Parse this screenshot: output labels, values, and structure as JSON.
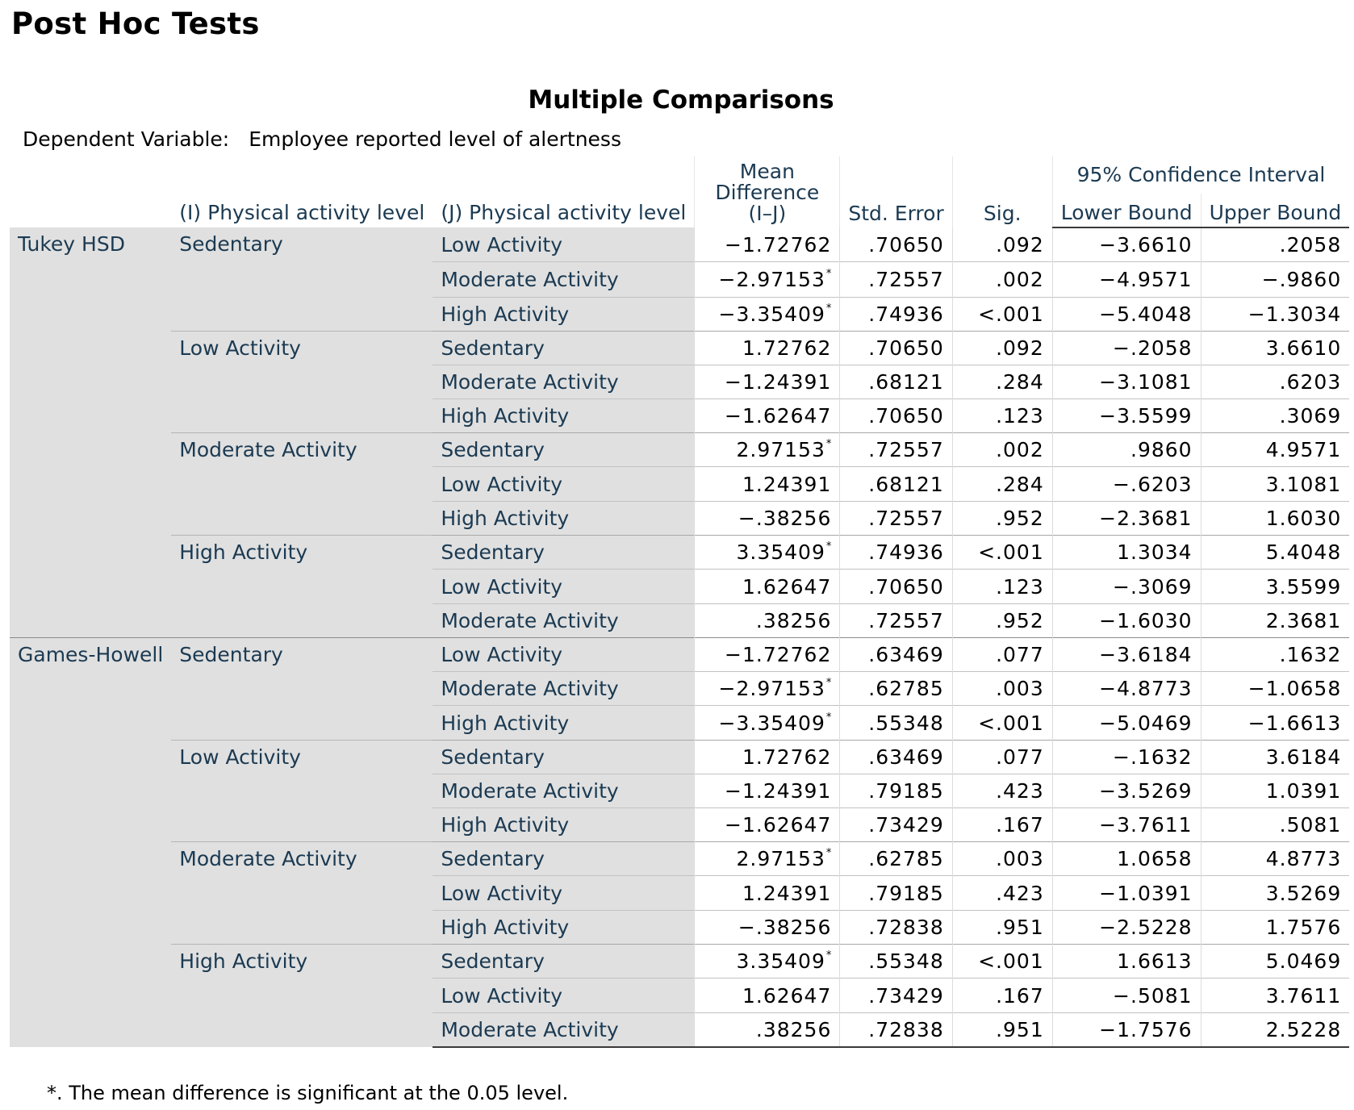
{
  "page": {
    "heading": "Post Hoc Tests",
    "table_title": "Multiple Comparisons",
    "dependent_variable_label": "Dependent Variable:",
    "dependent_variable_value": "Employee reported level of alertness"
  },
  "columns": {
    "i_level": "(I) Physical activity level",
    "j_level": "(J) Physical activity level",
    "mean_diff": "Mean Difference (I–J)",
    "std_error": "Std. Error",
    "sig": "Sig.",
    "ci_group": "95% Confidence Interval",
    "lower": "Lower Bound",
    "upper": "Upper Bound"
  },
  "rows": [
    {
      "method": "Tukey HSD",
      "i": "Sedentary",
      "j": "Low Activity",
      "md": "-1.72762",
      "star": false,
      "se": ".70650",
      "sig": ".092",
      "lb": "-3.6610",
      "ub": ".2058"
    },
    {
      "method": "",
      "i": "",
      "j": "Moderate Activity",
      "md": "-2.97153",
      "star": true,
      "se": ".72557",
      "sig": ".002",
      "lb": "-4.9571",
      "ub": "-.9860"
    },
    {
      "method": "",
      "i": "",
      "j": "High Activity",
      "md": "-3.35409",
      "star": true,
      "se": ".74936",
      "sig": "<.001",
      "lb": "-5.4048",
      "ub": "-1.3034"
    },
    {
      "method": "",
      "i": "Low Activity",
      "j": "Sedentary",
      "md": "1.72762",
      "star": false,
      "se": ".70650",
      "sig": ".092",
      "lb": "-.2058",
      "ub": "3.6610"
    },
    {
      "method": "",
      "i": "",
      "j": "Moderate Activity",
      "md": "-1.24391",
      "star": false,
      "se": ".68121",
      "sig": ".284",
      "lb": "-3.1081",
      "ub": ".6203"
    },
    {
      "method": "",
      "i": "",
      "j": "High Activity",
      "md": "-1.62647",
      "star": false,
      "se": ".70650",
      "sig": ".123",
      "lb": "-3.5599",
      "ub": ".3069"
    },
    {
      "method": "",
      "i": "Moderate Activity",
      "j": "Sedentary",
      "md": "2.97153",
      "star": true,
      "se": ".72557",
      "sig": ".002",
      "lb": ".9860",
      "ub": "4.9571"
    },
    {
      "method": "",
      "i": "",
      "j": "Low Activity",
      "md": "1.24391",
      "star": false,
      "se": ".68121",
      "sig": ".284",
      "lb": "-.6203",
      "ub": "3.1081"
    },
    {
      "method": "",
      "i": "",
      "j": "High Activity",
      "md": "-.38256",
      "star": false,
      "se": ".72557",
      "sig": ".952",
      "lb": "-2.3681",
      "ub": "1.6030"
    },
    {
      "method": "",
      "i": "High Activity",
      "j": "Sedentary",
      "md": "3.35409",
      "star": true,
      "se": ".74936",
      "sig": "<.001",
      "lb": "1.3034",
      "ub": "5.4048"
    },
    {
      "method": "",
      "i": "",
      "j": "Low Activity",
      "md": "1.62647",
      "star": false,
      "se": ".70650",
      "sig": ".123",
      "lb": "-.3069",
      "ub": "3.5599"
    },
    {
      "method": "",
      "i": "",
      "j": "Moderate Activity",
      "md": ".38256",
      "star": false,
      "se": ".72557",
      "sig": ".952",
      "lb": "-1.6030",
      "ub": "2.3681"
    },
    {
      "method": "Games-Howell",
      "i": "Sedentary",
      "j": "Low Activity",
      "md": "-1.72762",
      "star": false,
      "se": ".63469",
      "sig": ".077",
      "lb": "-3.6184",
      "ub": ".1632"
    },
    {
      "method": "",
      "i": "",
      "j": "Moderate Activity",
      "md": "-2.97153",
      "star": true,
      "se": ".62785",
      "sig": ".003",
      "lb": "-4.8773",
      "ub": "-1.0658"
    },
    {
      "method": "",
      "i": "",
      "j": "High Activity",
      "md": "-3.35409",
      "star": true,
      "se": ".55348",
      "sig": "<.001",
      "lb": "-5.0469",
      "ub": "-1.6613"
    },
    {
      "method": "",
      "i": "Low Activity",
      "j": "Sedentary",
      "md": "1.72762",
      "star": false,
      "se": ".63469",
      "sig": ".077",
      "lb": "-.1632",
      "ub": "3.6184"
    },
    {
      "method": "",
      "i": "",
      "j": "Moderate Activity",
      "md": "-1.24391",
      "star": false,
      "se": ".79185",
      "sig": ".423",
      "lb": "-3.5269",
      "ub": "1.0391"
    },
    {
      "method": "",
      "i": "",
      "j": "High Activity",
      "md": "-1.62647",
      "star": false,
      "se": ".73429",
      "sig": ".167",
      "lb": "-3.7611",
      "ub": ".5081"
    },
    {
      "method": "",
      "i": "Moderate Activity",
      "j": "Sedentary",
      "md": "2.97153",
      "star": true,
      "se": ".62785",
      "sig": ".003",
      "lb": "1.0658",
      "ub": "4.8773"
    },
    {
      "method": "",
      "i": "",
      "j": "Low Activity",
      "md": "1.24391",
      "star": false,
      "se": ".79185",
      "sig": ".423",
      "lb": "-1.0391",
      "ub": "3.5269"
    },
    {
      "method": "",
      "i": "",
      "j": "High Activity",
      "md": "-.38256",
      "star": false,
      "se": ".72838",
      "sig": ".951",
      "lb": "-2.5228",
      "ub": "1.7576"
    },
    {
      "method": "",
      "i": "High Activity",
      "j": "Sedentary",
      "md": "3.35409",
      "star": true,
      "se": ".55348",
      "sig": "<.001",
      "lb": "1.6613",
      "ub": "5.0469"
    },
    {
      "method": "",
      "i": "",
      "j": "Low Activity",
      "md": "1.62647",
      "star": false,
      "se": ".73429",
      "sig": ".167",
      "lb": "-.5081",
      "ub": "3.7611"
    },
    {
      "method": "",
      "i": "",
      "j": "Moderate Activity",
      "md": ".38256",
      "star": false,
      "se": ".72838",
      "sig": ".951",
      "lb": "-1.7576",
      "ub": "2.5228"
    }
  ],
  "footnote": "*. The mean difference is significant at the 0.05 level.",
  "significance_marker": "*"
}
